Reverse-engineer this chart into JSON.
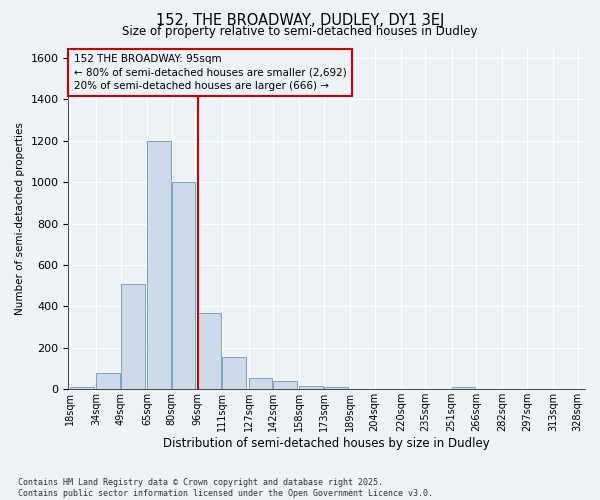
{
  "title1": "152, THE BROADWAY, DUDLEY, DY1 3EJ",
  "title2": "Size of property relative to semi-detached houses in Dudley",
  "xlabel": "Distribution of semi-detached houses by size in Dudley",
  "ylabel": "Number of semi-detached properties",
  "footer_line1": "Contains HM Land Registry data © Crown copyright and database right 2025.",
  "footer_line2": "Contains public sector information licensed under the Open Government Licence v3.0.",
  "annotation_title": "152 THE BROADWAY: 95sqm",
  "annotation_line1": "← 80% of semi-detached houses are smaller (2,692)",
  "annotation_line2": "20% of semi-detached houses are larger (666) →",
  "bar_left_edges": [
    18,
    34,
    49,
    65,
    80,
    96,
    111,
    127,
    142,
    158,
    173,
    189,
    204,
    220,
    235,
    251,
    266,
    282,
    297,
    313
  ],
  "bar_heights": [
    10,
    80,
    510,
    1200,
    1000,
    370,
    155,
    55,
    40,
    15,
    10,
    0,
    0,
    0,
    0,
    10,
    0,
    0,
    0,
    0
  ],
  "tick_labels": [
    "18sqm",
    "34sqm",
    "49sqm",
    "65sqm",
    "80sqm",
    "96sqm",
    "111sqm",
    "127sqm",
    "142sqm",
    "158sqm",
    "173sqm",
    "189sqm",
    "204sqm",
    "220sqm",
    "235sqm",
    "251sqm",
    "266sqm",
    "282sqm",
    "297sqm",
    "313sqm",
    "328sqm"
  ],
  "bar_color": "#ccd9e8",
  "bar_edge_color": "#7ba3c0",
  "line_color": "#cc0000",
  "box_edge_color": "#cc0000",
  "background_color": "#edf2f7",
  "grid_color": "#ffffff",
  "ylim": [
    0,
    1650
  ],
  "yticks": [
    0,
    200,
    400,
    600,
    800,
    1000,
    1200,
    1400,
    1600
  ],
  "property_line_x": 96,
  "bar_width": 14.5
}
